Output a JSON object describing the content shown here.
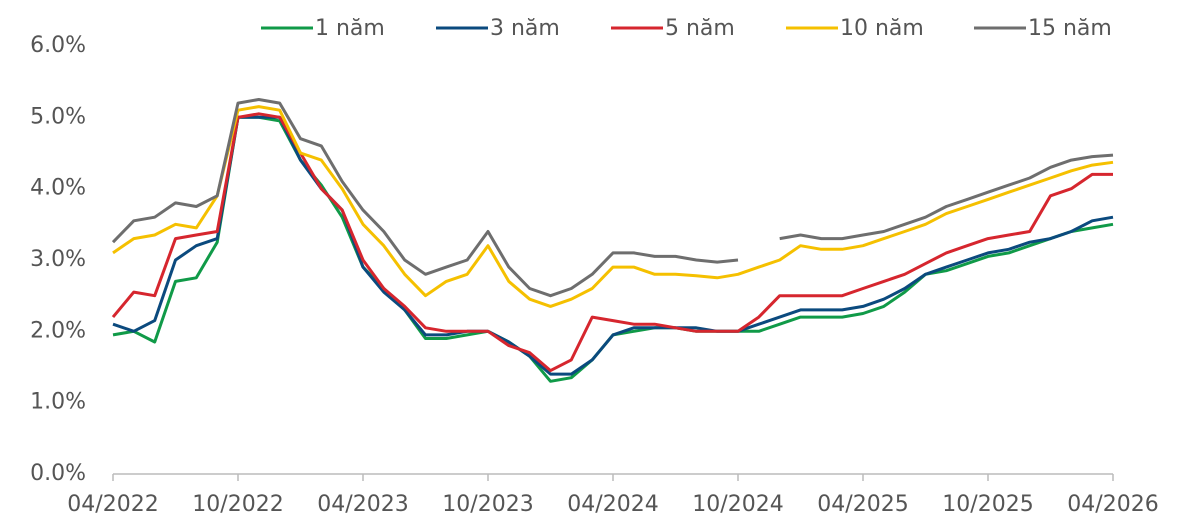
{
  "chart_data": {
    "type": "line",
    "x": [
      "04/2022",
      "05/2022",
      "06/2022",
      "07/2022",
      "08/2022",
      "09/2022",
      "10/2022",
      "11/2022",
      "12/2022",
      "01/2023",
      "02/2023",
      "03/2023",
      "04/2023",
      "05/2023",
      "06/2023",
      "07/2023",
      "08/2023",
      "09/2023",
      "10/2023",
      "11/2023",
      "12/2023",
      "01/2024",
      "02/2024",
      "03/2024",
      "04/2024",
      "05/2024",
      "06/2024",
      "07/2024",
      "08/2024",
      "09/2024",
      "10/2024",
      "11/2024",
      "12/2024",
      "01/2025",
      "02/2025",
      "03/2025",
      "04/2025",
      "05/2025",
      "06/2025",
      "07/2025",
      "08/2025",
      "09/2025",
      "10/2025",
      "11/2025",
      "12/2025",
      "01/2026",
      "02/2026",
      "03/2026",
      "04/2026"
    ],
    "series": [
      {
        "name": "1 năm",
        "color": "#109a48",
        "values": [
          1.95,
          2.0,
          1.85,
          2.7,
          2.75,
          3.25,
          5.0,
          5.0,
          4.95,
          4.4,
          4.05,
          3.6,
          2.9,
          2.6,
          2.3,
          1.9,
          1.9,
          1.95,
          2.0,
          1.85,
          1.65,
          1.3,
          1.35,
          1.6,
          1.95,
          2.0,
          2.05,
          2.05,
          2.0,
          2.0,
          2.0,
          2.0,
          2.1,
          2.2,
          2.2,
          2.2,
          2.25,
          2.35,
          2.55,
          2.8,
          2.85,
          2.95,
          3.05,
          3.1,
          3.2,
          3.3,
          3.4,
          3.45,
          3.5
        ]
      },
      {
        "name": "3 năm",
        "color": "#0b4a7e",
        "values": [
          2.1,
          2.0,
          2.15,
          3.0,
          3.2,
          3.3,
          5.0,
          5.0,
          5.0,
          4.4,
          4.0,
          3.7,
          2.9,
          2.55,
          2.3,
          1.95,
          1.95,
          2.0,
          2.0,
          1.85,
          1.65,
          1.4,
          1.4,
          1.6,
          1.95,
          2.05,
          2.05,
          2.05,
          2.05,
          2.0,
          2.0,
          2.1,
          2.2,
          2.3,
          2.3,
          2.3,
          2.35,
          2.45,
          2.6,
          2.8,
          2.9,
          3.0,
          3.1,
          3.15,
          3.25,
          3.3,
          3.4,
          3.55,
          3.6
        ]
      },
      {
        "name": "5 năm",
        "color": "#d6262e",
        "values": [
          2.2,
          2.55,
          2.5,
          3.3,
          3.35,
          3.4,
          5.0,
          5.05,
          5.0,
          4.5,
          4.0,
          3.7,
          3.0,
          2.6,
          2.35,
          2.05,
          2.0,
          2.0,
          2.0,
          1.8,
          1.7,
          1.45,
          1.6,
          2.2,
          2.15,
          2.1,
          2.1,
          2.05,
          2.0,
          2.0,
          2.0,
          2.2,
          2.5,
          2.5,
          2.5,
          2.5,
          2.6,
          2.7,
          2.8,
          2.95,
          3.1,
          3.2,
          3.3,
          3.35,
          3.4,
          3.9,
          4.0,
          4.2,
          4.2
        ]
      },
      {
        "name": "10 năm",
        "color": "#f5c000",
        "values": [
          3.1,
          3.3,
          3.35,
          3.5,
          3.45,
          3.9,
          5.1,
          5.15,
          5.1,
          4.5,
          4.4,
          4.0,
          3.5,
          3.2,
          2.8,
          2.5,
          2.7,
          2.8,
          3.2,
          2.7,
          2.45,
          2.35,
          2.45,
          2.6,
          2.9,
          2.9,
          2.8,
          2.8,
          2.78,
          2.75,
          2.8,
          2.9,
          3.0,
          3.2,
          3.15,
          3.15,
          3.2,
          3.3,
          3.4,
          3.5,
          3.65,
          3.75,
          3.85,
          3.95,
          4.05,
          4.15,
          4.25,
          4.33,
          4.37
        ]
      },
      {
        "name": "15 năm",
        "color": "#6e6e6e",
        "values": [
          3.25,
          3.55,
          3.6,
          3.8,
          3.75,
          3.9,
          5.2,
          5.25,
          5.2,
          4.7,
          4.6,
          4.1,
          3.7,
          3.4,
          3.0,
          2.8,
          2.9,
          3.0,
          3.4,
          2.9,
          2.6,
          2.5,
          2.6,
          2.8,
          3.1,
          3.1,
          3.05,
          3.05,
          3.0,
          2.97,
          3.0,
          null,
          3.3,
          3.35,
          3.3,
          3.3,
          3.35,
          3.4,
          3.5,
          3.6,
          3.75,
          3.85,
          3.95,
          4.05,
          4.15,
          4.3,
          4.4,
          4.45,
          4.47
        ]
      }
    ],
    "xlim": [
      "04/2022",
      "04/2026"
    ],
    "xticks": [
      "04/2022",
      "10/2022",
      "04/2023",
      "10/2023",
      "04/2024",
      "10/2024",
      "04/2025",
      "10/2025",
      "04/2026"
    ],
    "ylim": [
      0,
      6
    ],
    "yticks": [
      {
        "value": 0,
        "label": "0.0%"
      },
      {
        "value": 1,
        "label": "1.0%"
      },
      {
        "value": 2,
        "label": "2.0%"
      },
      {
        "value": 3,
        "label": "3.0%"
      },
      {
        "value": 4,
        "label": "4.0%"
      },
      {
        "value": 5,
        "label": "5.0%"
      },
      {
        "value": 6,
        "label": "6.0%"
      }
    ],
    "legend": "top"
  }
}
